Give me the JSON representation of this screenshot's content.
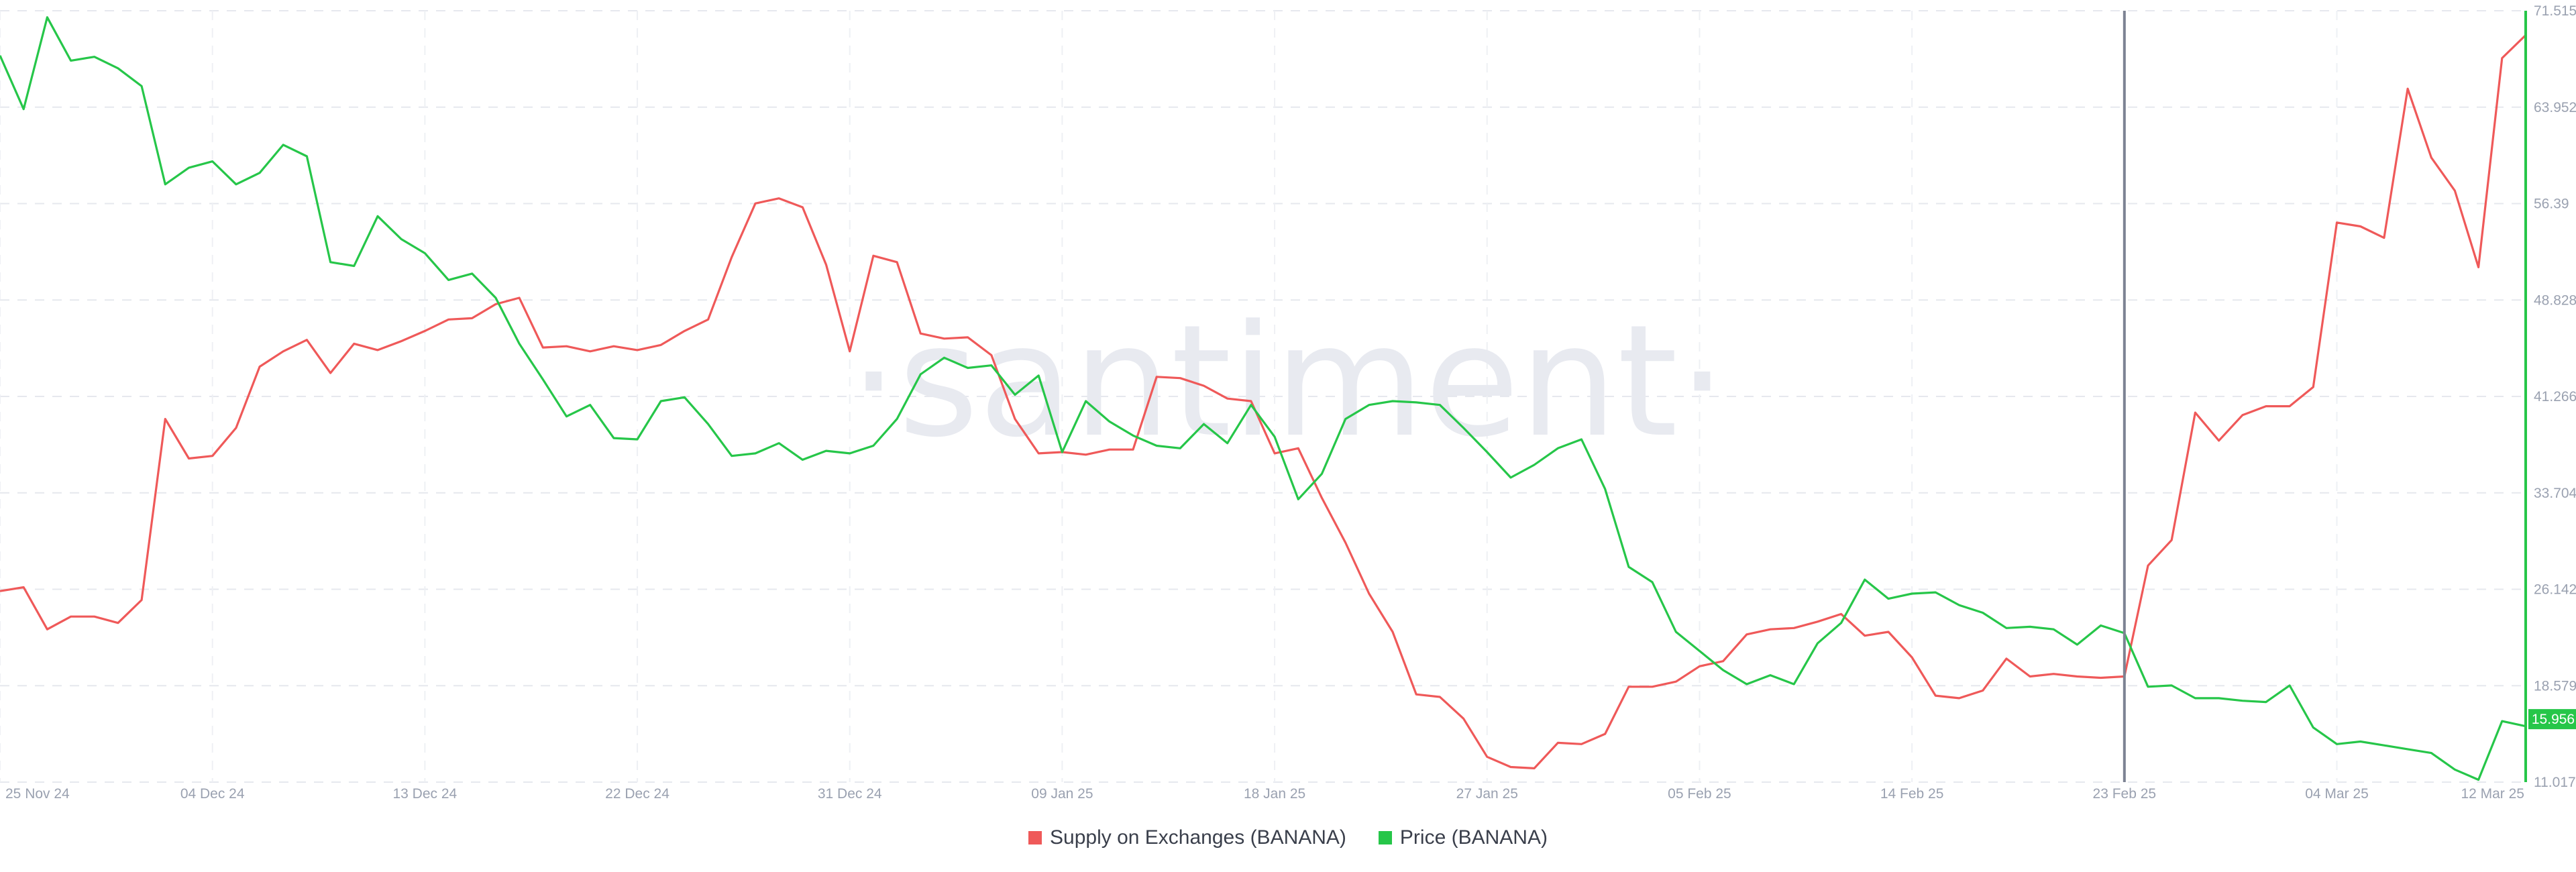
{
  "watermark": "·santiment·",
  "colors": {
    "supply": "#ef5959",
    "price": "#26c649",
    "crosshair": "#7d8393",
    "right_axis": "#26c649"
  },
  "legend": [
    {
      "label": "Supply on Exchanges (BANANA)",
      "color": "#ef5959"
    },
    {
      "label": "Price (BANANA)",
      "color": "#26c649"
    }
  ],
  "price_tag": "15.956",
  "chart_data": {
    "type": "line",
    "x_ticks": [
      "25 Nov 24",
      "04 Dec 24",
      "13 Dec 24",
      "22 Dec 24",
      "31 Dec 24",
      "09 Jan 25",
      "18 Jan 25",
      "27 Jan 25",
      "05 Feb 25",
      "14 Feb 25",
      "23 Feb 25",
      "04 Mar 25",
      "12 Mar 25"
    ],
    "x_range": [
      "2024-11-25",
      "2025-03-12"
    ],
    "right_axis_ticks": [
      "71.515",
      "63.952",
      "56.39",
      "48.828",
      "41.266",
      "33.704",
      "26.142",
      "18.579",
      "11.017"
    ],
    "right_axis_range": [
      11.017,
      71.515
    ],
    "crosshair_date": "23 Feb 25",
    "grid": true,
    "legend_position": "bottom-center",
    "series": [
      {
        "name": "Supply on Exchanges (BANANA)",
        "axis": "hidden",
        "values": [
          26.0,
          26.3,
          23.0,
          24.0,
          24.0,
          23.5,
          25.3,
          39.5,
          36.4,
          36.6,
          38.8,
          43.6,
          44.8,
          45.7,
          43.1,
          45.4,
          44.9,
          45.6,
          46.4,
          47.3,
          47.4,
          48.5,
          49.0,
          45.1,
          45.2,
          44.8,
          45.2,
          44.9,
          45.3,
          46.4,
          47.3,
          52.2,
          56.4,
          56.8,
          56.1,
          51.6,
          44.8,
          52.3,
          51.8,
          46.2,
          45.8,
          45.9,
          44.5,
          39.5,
          36.8,
          36.9,
          36.7,
          37.1,
          37.1,
          42.8,
          42.7,
          42.1,
          41.1,
          40.9,
          36.8,
          37.2,
          33.3,
          29.8,
          25.8,
          22.8,
          17.9,
          17.7,
          16.0,
          13.0,
          12.2,
          12.1,
          14.1,
          14.0,
          14.8,
          18.5,
          18.5,
          18.9,
          20.1,
          20.5,
          22.6,
          23.0,
          23.1,
          23.6,
          24.2,
          22.5,
          22.8,
          20.8,
          17.8,
          17.6,
          18.2,
          20.7,
          19.3,
          19.5,
          19.3,
          19.2,
          19.3,
          28.0,
          30.0,
          40.0,
          37.8,
          39.8,
          40.5,
          40.5,
          42.0,
          54.9,
          54.6,
          53.7,
          65.4,
          60.0,
          57.4,
          51.4,
          67.8,
          69.6
        ]
      },
      {
        "name": "Price (BANANA)",
        "axis": "right",
        "values": [
          68.0,
          63.8,
          71.0,
          67.6,
          67.9,
          67.0,
          65.6,
          57.9,
          59.2,
          59.7,
          57.9,
          58.8,
          61.0,
          60.1,
          51.8,
          51.5,
          55.4,
          53.6,
          52.5,
          50.4,
          50.9,
          49.0,
          45.4,
          42.6,
          39.7,
          40.6,
          38.0,
          37.9,
          40.9,
          41.2,
          39.1,
          36.6,
          36.8,
          37.6,
          36.3,
          37.0,
          36.8,
          37.4,
          39.5,
          43.0,
          44.3,
          43.5,
          43.7,
          41.4,
          42.9,
          36.9,
          40.9,
          39.3,
          38.2,
          37.4,
          37.2,
          39.1,
          37.6,
          40.6,
          38.1,
          33.2,
          35.2,
          39.5,
          40.6,
          40.9,
          40.8,
          40.6,
          38.8,
          36.9,
          34.9,
          35.9,
          37.2,
          37.9,
          34.0,
          27.9,
          26.7,
          22.8,
          21.3,
          19.8,
          18.7,
          19.4,
          18.7,
          21.9,
          23.5,
          26.9,
          25.4,
          25.8,
          25.9,
          24.9,
          24.3,
          23.1,
          23.2,
          23.0,
          21.8,
          23.3,
          22.7,
          18.5,
          18.6,
          17.6,
          17.6,
          17.4,
          17.3,
          18.6,
          15.3,
          14.0,
          14.2,
          13.9,
          13.6,
          13.3,
          12.0,
          11.2,
          15.8,
          15.4
        ]
      }
    ]
  }
}
